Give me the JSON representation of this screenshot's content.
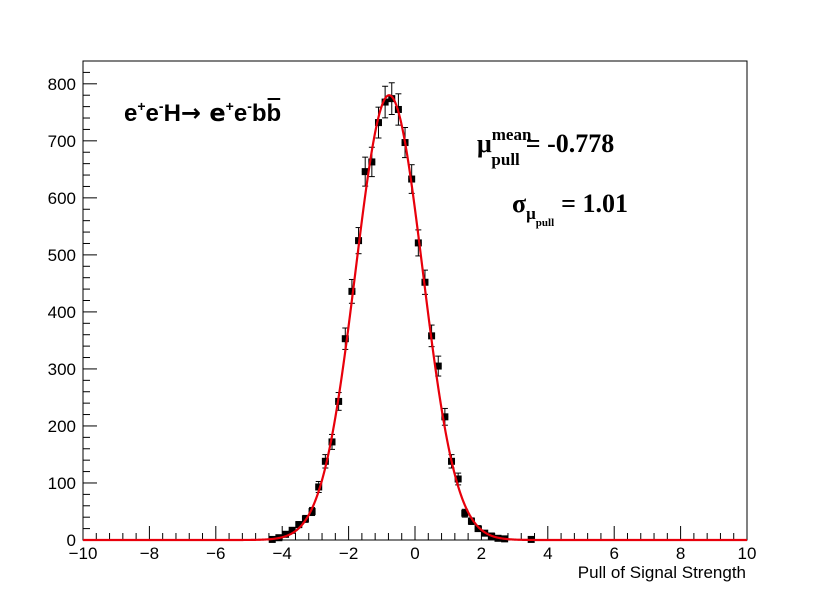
{
  "chart_data": {
    "type": "histogram",
    "xlabel": "Pull of Signal Strength",
    "ylabel": "",
    "xlim": [
      -10,
      10
    ],
    "ylim": [
      0,
      840
    ],
    "x_ticks": [
      -10,
      -8,
      -6,
      -4,
      -2,
      0,
      2,
      4,
      6,
      8,
      10
    ],
    "y_ticks": [
      0,
      100,
      200,
      300,
      400,
      500,
      600,
      700,
      800
    ],
    "grid": false,
    "legend": null,
    "process_label": {
      "parts": [
        "e",
        "+",
        "e",
        "-",
        "H",
        "→ e",
        "+",
        "e",
        "-",
        "bb"
      ]
    },
    "stats": {
      "mean_symbol": "μ",
      "mean_sup": "mean",
      "mean_sub": "pull",
      "mean_text": "= -0.778",
      "sigma_symbol": "σ",
      "sigma_sub": "μ",
      "sigma_subsub": "pull",
      "sigma_text": "= 1.01",
      "mean": -0.778,
      "sigma": 1.01
    },
    "bin_width": 0.2,
    "series": [
      {
        "style": "points-with-error-bars",
        "color": "#000000",
        "x": [
          -4.3,
          -4.1,
          -3.9,
          -3.7,
          -3.5,
          -3.3,
          -3.1,
          -2.9,
          -2.7,
          -2.5,
          -2.3,
          -2.1,
          -1.9,
          -1.7,
          -1.5,
          -1.3,
          -1.1,
          -0.9,
          -0.7,
          -0.5,
          -0.3,
          -0.1,
          0.1,
          0.3,
          0.5,
          0.7,
          0.9,
          1.1,
          1.3,
          1.5,
          1.7,
          1.9,
          2.1,
          2.3,
          2.5,
          2.7,
          3.5
        ],
        "y": [
          1,
          4,
          10,
          17,
          27,
          37,
          50,
          93,
          138,
          172,
          243,
          353,
          436,
          525,
          646,
          663,
          732,
          768,
          774,
          755,
          697,
          633,
          521,
          452,
          358,
          305,
          216,
          138,
          107,
          47,
          33,
          20,
          12,
          7,
          3,
          2,
          1
        ]
      },
      {
        "name": "fit",
        "style": "line",
        "color": "#e8000b",
        "type": "gaussian",
        "amplitude": 780,
        "mean": -0.778,
        "sigma": 1.01
      }
    ]
  }
}
